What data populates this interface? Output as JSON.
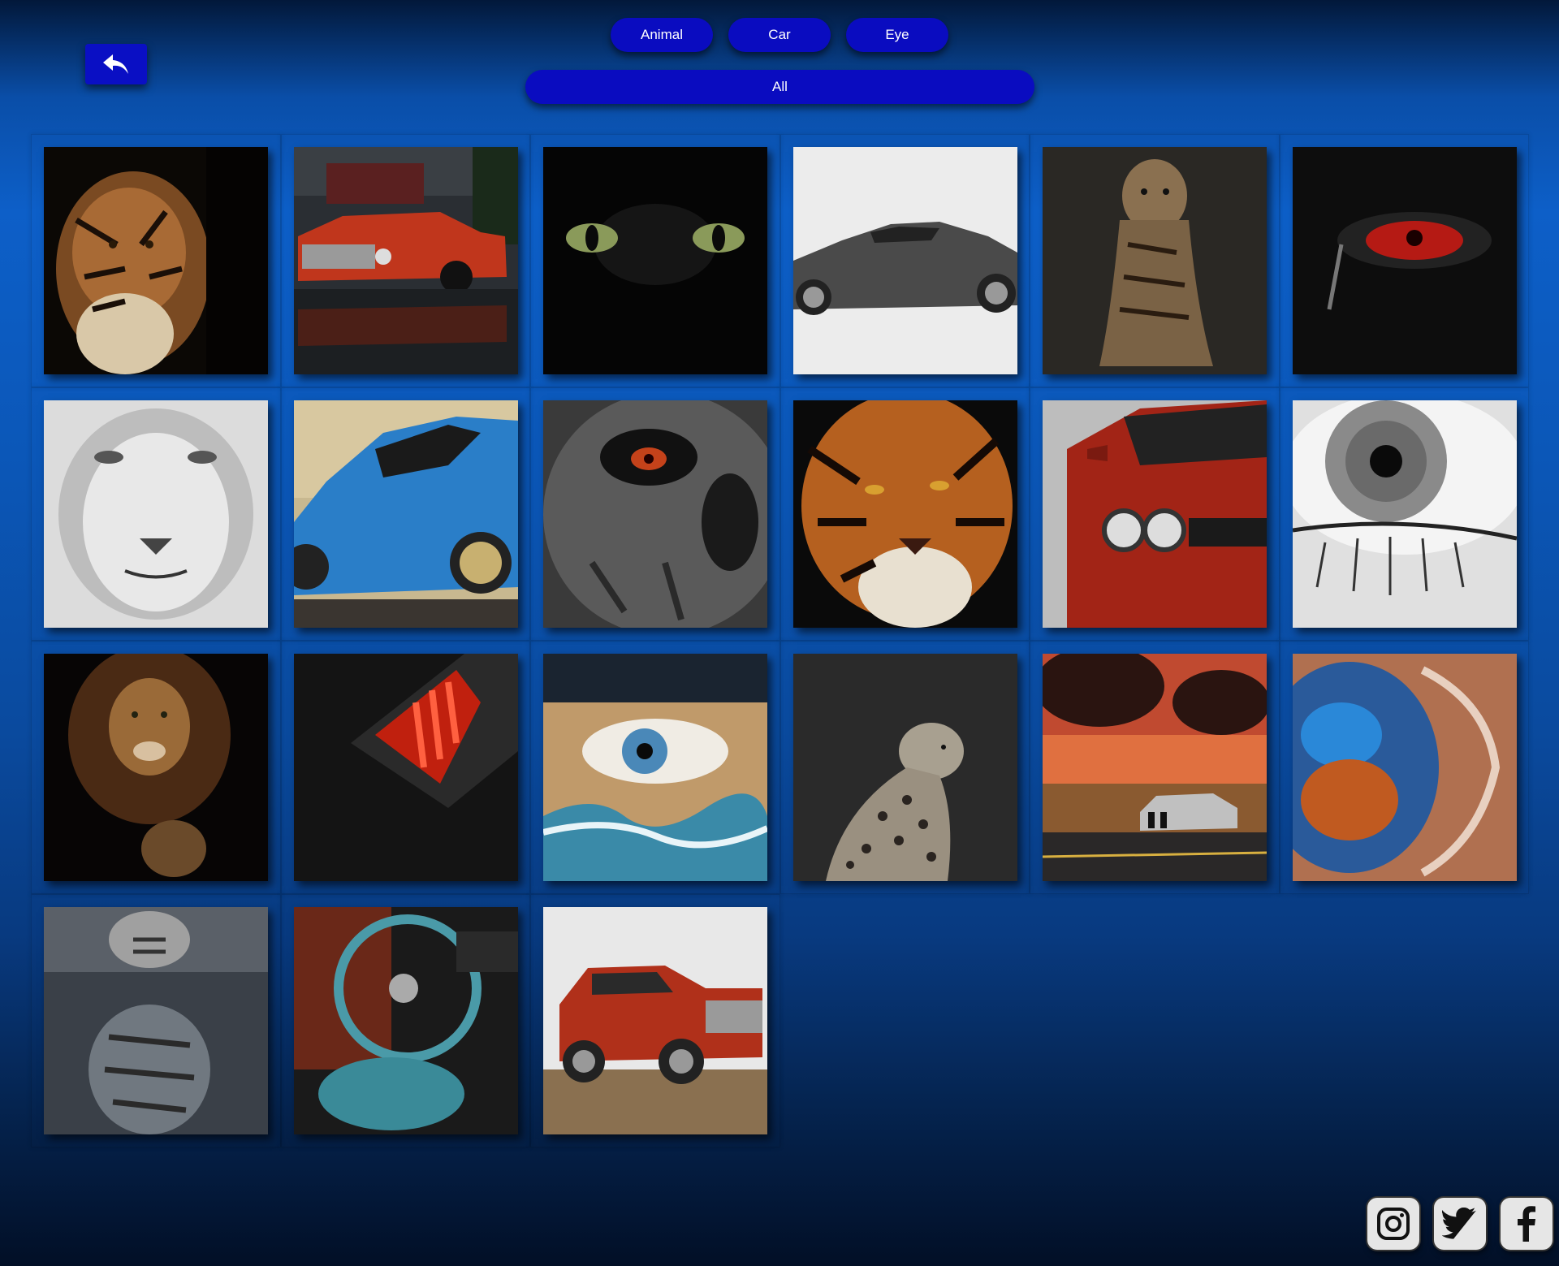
{
  "filters": {
    "animal": "Animal",
    "car": "Car",
    "eye": "Eye",
    "all": "All"
  },
  "nav": {
    "back_icon": "reply-arrow-icon"
  },
  "gallery": {
    "items": [
      {
        "subject": "tiger",
        "icon": "tiger-image"
      },
      {
        "subject": "pickup",
        "icon": "car-image"
      },
      {
        "subject": "dragon-eyes",
        "icon": "eye-image"
      },
      {
        "subject": "coupe",
        "icon": "car-image"
      },
      {
        "subject": "tiger-sitting",
        "icon": "tiger-image"
      },
      {
        "subject": "red-eye",
        "icon": "eye-image"
      },
      {
        "subject": "white-lion",
        "icon": "lion-image"
      },
      {
        "subject": "blue-car",
        "icon": "car-image"
      },
      {
        "subject": "skull-eye",
        "icon": "eye-image"
      },
      {
        "subject": "tiger-face",
        "icon": "tiger-image"
      },
      {
        "subject": "red-car",
        "icon": "car-image"
      },
      {
        "subject": "grey-eye",
        "icon": "eye-image"
      },
      {
        "subject": "lion",
        "icon": "lion-image"
      },
      {
        "subject": "taillight",
        "icon": "car-image"
      },
      {
        "subject": "eye-wave",
        "icon": "eye-image"
      },
      {
        "subject": "leopard",
        "icon": "leopard-image"
      },
      {
        "subject": "sunset-car",
        "icon": "car-image"
      },
      {
        "subject": "blue-eye",
        "icon": "eye-image"
      },
      {
        "subject": "cat-tiger",
        "icon": "cat-image"
      },
      {
        "subject": "interior",
        "icon": "car-image"
      },
      {
        "subject": "truck",
        "icon": "car-image"
      }
    ]
  },
  "social": [
    {
      "name": "instagram-icon"
    },
    {
      "name": "twitter-icon"
    },
    {
      "name": "facebook-icon"
    }
  ],
  "colors": {
    "button": "#0a0cc0",
    "background_top": "#02183a",
    "background_mid": "#0d5fc8",
    "background_bottom": "#020f26"
  }
}
